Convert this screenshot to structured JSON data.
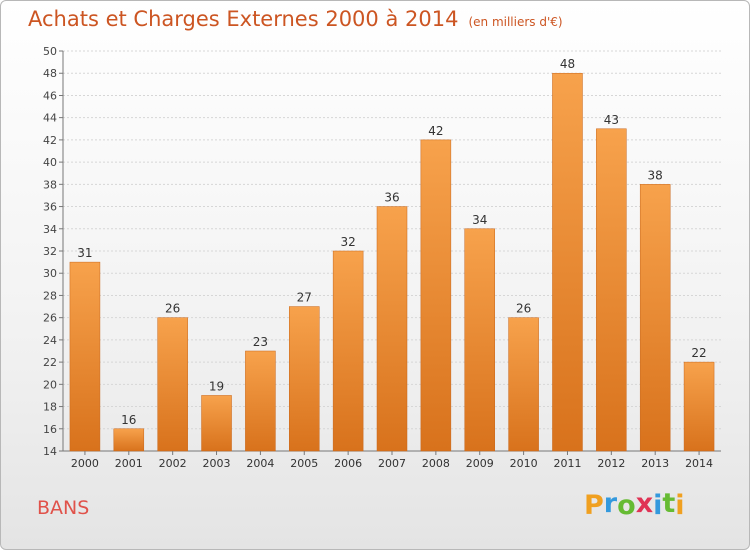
{
  "chart_data": {
    "type": "bar",
    "title": "Achats et Charges Externes 2000 à 2014",
    "unit": "(en milliers d'€)",
    "categories": [
      "2000",
      "2001",
      "2002",
      "2003",
      "2004",
      "2005",
      "2006",
      "2007",
      "2008",
      "2009",
      "2010",
      "2011",
      "2012",
      "2013",
      "2014"
    ],
    "values": [
      31,
      16,
      26,
      19,
      23,
      27,
      32,
      36,
      42,
      34,
      26,
      48,
      43,
      38,
      22
    ],
    "ylim": [
      14,
      50
    ],
    "yticks": [
      14,
      16,
      18,
      20,
      22,
      24,
      26,
      28,
      30,
      32,
      34,
      36,
      38,
      40,
      42,
      44,
      46,
      48,
      50
    ],
    "grid": true,
    "bar_color": "#f08a2c",
    "xlabel": "",
    "ylabel": ""
  },
  "location": "BANS",
  "brand": {
    "name": "Proxiti",
    "letters": [
      "P",
      "r",
      "o",
      "x",
      "i",
      "t",
      "i"
    ],
    "colors": [
      "#f0a020",
      "#3399dd",
      "#66bb33",
      "#e03355",
      "#3399dd",
      "#66bb33",
      "#f0a020"
    ]
  }
}
